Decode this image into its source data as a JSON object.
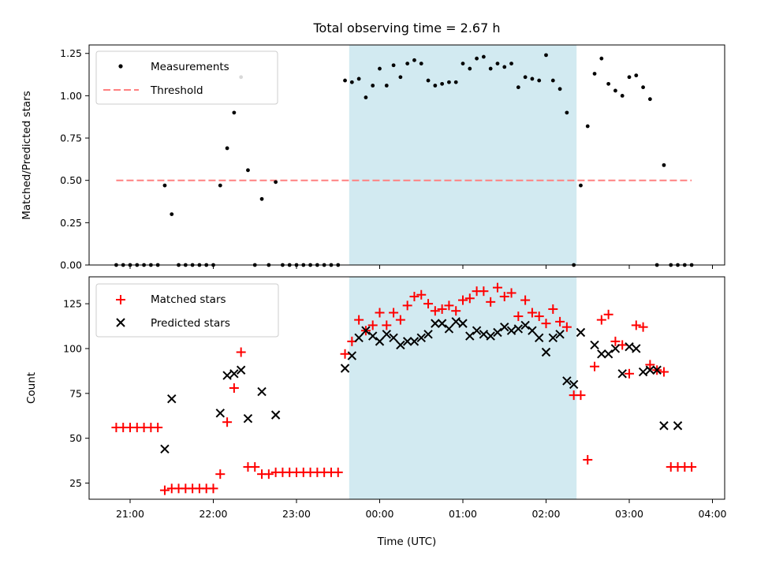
{
  "chart_data": [
    {
      "type": "scatter",
      "title": "Total observing time = 2.67 h",
      "xlabel": "",
      "ylabel": "Matched/Predicted stars",
      "ylim": [
        0,
        1.3
      ],
      "y_ticks": [
        "0.00",
        "0.25",
        "0.50",
        "0.75",
        "1.00",
        "1.25"
      ],
      "legend": {
        "placement": "top-left",
        "entries": [
          "Measurements",
          "Threshold"
        ]
      },
      "threshold": {
        "name": "Threshold",
        "value": 0.5,
        "color": "#ff8080",
        "x_start": "20:50",
        "x_end": "03:45"
      },
      "shaded_interval": {
        "start": "23:38",
        "end": "02:22",
        "color": "#add8e6"
      },
      "series": [
        {
          "name": "Measurements",
          "marker": "dot",
          "color": "#000000",
          "x": [
            "20:50",
            "20:55",
            "21:00",
            "21:05",
            "21:10",
            "21:15",
            "21:20",
            "21:25",
            "21:30",
            "21:35",
            "21:40",
            "21:45",
            "21:50",
            "21:55",
            "22:00",
            "22:05",
            "22:10",
            "22:15",
            "22:20",
            "22:25",
            "22:30",
            "22:35",
            "22:40",
            "22:45",
            "22:50",
            "22:55",
            "23:00",
            "23:05",
            "23:10",
            "23:15",
            "23:20",
            "23:25",
            "23:30",
            "23:35",
            "23:40",
            "23:45",
            "23:50",
            "23:55",
            "00:00",
            "00:05",
            "00:10",
            "00:15",
            "00:20",
            "00:25",
            "00:30",
            "00:35",
            "00:40",
            "00:45",
            "00:50",
            "00:55",
            "01:00",
            "01:05",
            "01:10",
            "01:15",
            "01:20",
            "01:25",
            "01:30",
            "01:35",
            "01:40",
            "01:45",
            "01:50",
            "01:55",
            "02:00",
            "02:05",
            "02:10",
            "02:15",
            "02:20",
            "02:25",
            "02:30",
            "02:35",
            "02:40",
            "02:45",
            "02:50",
            "02:55",
            "03:00",
            "03:05",
            "03:10",
            "03:15",
            "03:20",
            "03:25",
            "03:30",
            "03:35",
            "03:40",
            "03:45"
          ],
          "y": [
            0,
            0,
            0,
            0,
            0,
            0,
            0,
            0.47,
            0.3,
            0,
            0,
            0,
            0,
            0,
            0,
            0.47,
            0.69,
            0.9,
            1.11,
            0.56,
            0,
            0.39,
            0,
            0.49,
            0,
            0,
            0,
            0,
            0,
            0,
            0,
            0,
            0,
            1.09,
            1.08,
            1.1,
            0.99,
            1.06,
            1.16,
            1.06,
            1.18,
            1.11,
            1.19,
            1.21,
            1.19,
            1.09,
            1.06,
            1.07,
            1.08,
            1.08,
            1.19,
            1.16,
            1.22,
            1.23,
            1.16,
            1.19,
            1.17,
            1.19,
            1.05,
            1.11,
            1.1,
            1.09,
            1.24,
            1.09,
            1.04,
            0.9,
            0,
            0.47,
            0.82,
            1.13,
            1.22,
            1.07,
            1.03,
            1.0,
            1.11,
            1.12,
            1.05,
            0.98,
            0,
            0.59,
            0,
            0,
            0,
            0
          ]
        }
      ]
    },
    {
      "type": "scatter",
      "title": "",
      "xlabel": "Time (UTC)",
      "ylabel": "Count",
      "ylim": [
        16,
        140
      ],
      "y_ticks": [
        "25",
        "50",
        "75",
        "100",
        "125"
      ],
      "x_ticks": [
        "21:00",
        "22:00",
        "23:00",
        "00:00",
        "01:00",
        "02:00",
        "03:00",
        "04:00"
      ],
      "legend": {
        "placement": "top-left",
        "entries": [
          "Matched stars",
          "Predicted stars"
        ]
      },
      "shaded_interval": {
        "start": "23:38",
        "end": "02:22",
        "color": "#add8e6"
      },
      "series": [
        {
          "name": "Matched stars",
          "marker": "plus",
          "color": "#ff0000",
          "x": [
            "20:50",
            "20:55",
            "21:00",
            "21:05",
            "21:10",
            "21:15",
            "21:20",
            "21:25",
            "21:30",
            "21:35",
            "21:40",
            "21:45",
            "21:50",
            "21:55",
            "22:00",
            "22:05",
            "22:10",
            "22:15",
            "22:20",
            "22:25",
            "22:30",
            "22:35",
            "22:40",
            "22:45",
            "22:50",
            "22:55",
            "23:00",
            "23:05",
            "23:10",
            "23:15",
            "23:20",
            "23:25",
            "23:30",
            "23:35",
            "23:40",
            "23:45",
            "23:50",
            "23:55",
            "00:00",
            "00:05",
            "00:10",
            "00:15",
            "00:20",
            "00:25",
            "00:30",
            "00:35",
            "00:40",
            "00:45",
            "00:50",
            "00:55",
            "01:00",
            "01:05",
            "01:10",
            "01:15",
            "01:20",
            "01:25",
            "01:30",
            "01:35",
            "01:40",
            "01:45",
            "01:50",
            "01:55",
            "02:00",
            "02:05",
            "02:10",
            "02:15",
            "02:20",
            "02:25",
            "02:30",
            "02:35",
            "02:40",
            "02:45",
            "02:50",
            "02:55",
            "03:00",
            "03:05",
            "03:10",
            "03:15",
            "03:20",
            "03:25",
            "03:30",
            "03:35",
            "03:40",
            "03:45"
          ],
          "y": [
            56,
            56,
            56,
            56,
            56,
            56,
            56,
            21,
            22,
            22,
            22,
            22,
            22,
            22,
            22,
            30,
            59,
            78,
            98,
            34,
            34,
            30,
            30,
            31,
            31,
            31,
            31,
            31,
            31,
            31,
            31,
            31,
            31,
            97,
            104,
            116,
            110,
            113,
            120,
            113,
            120,
            116,
            124,
            129,
            130,
            125,
            121,
            122,
            124,
            121,
            127,
            128,
            132,
            132,
            126,
            134,
            129,
            131,
            118,
            127,
            120,
            118,
            114,
            122,
            115,
            112,
            74,
            74,
            38,
            90,
            116,
            119,
            104,
            102,
            86,
            113,
            112,
            91,
            88,
            87,
            34,
            34,
            34,
            34
          ]
        },
        {
          "name": "Predicted stars",
          "marker": "x",
          "color": "#000000",
          "x": [
            "21:25",
            "21:30",
            "22:05",
            "22:10",
            "22:15",
            "22:20",
            "22:25",
            "22:35",
            "22:45",
            "23:35",
            "23:40",
            "23:45",
            "23:50",
            "23:55",
            "00:00",
            "00:05",
            "00:10",
            "00:15",
            "00:20",
            "00:25",
            "00:30",
            "00:35",
            "00:40",
            "00:45",
            "00:50",
            "00:55",
            "01:00",
            "01:05",
            "01:10",
            "01:15",
            "01:20",
            "01:25",
            "01:30",
            "01:35",
            "01:40",
            "01:45",
            "01:50",
            "01:55",
            "02:00",
            "02:05",
            "02:10",
            "02:15",
            "02:20",
            "02:25",
            "02:35",
            "02:40",
            "02:45",
            "02:50",
            "02:55",
            "03:00",
            "03:05",
            "03:10",
            "03:15",
            "03:20",
            "03:25",
            "03:35"
          ],
          "y": [
            44,
            72,
            64,
            85,
            86,
            88,
            61,
            76,
            63,
            89,
            96,
            106,
            110,
            107,
            104,
            108,
            106,
            102,
            104,
            104,
            106,
            108,
            114,
            114,
            111,
            115,
            114,
            107,
            110,
            108,
            107,
            109,
            112,
            110,
            111,
            113,
            110,
            106,
            98,
            106,
            108,
            82,
            80,
            109,
            102,
            97,
            97,
            100,
            86,
            101,
            100,
            87,
            88,
            88,
            57,
            57
          ]
        }
      ]
    }
  ]
}
